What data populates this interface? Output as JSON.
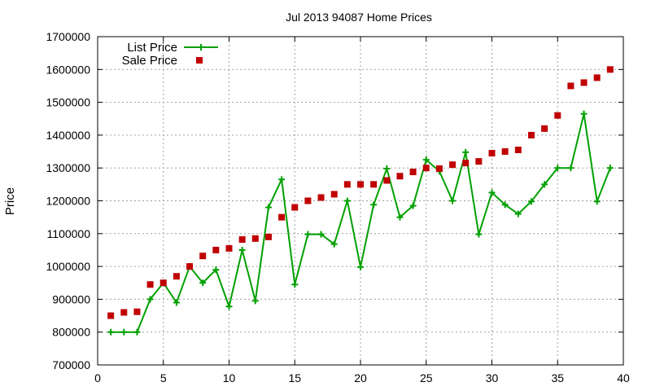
{
  "chart_data": {
    "type": "line",
    "title": "Jul 2013 94087 Home Prices",
    "xlabel": "",
    "ylabel": "Price",
    "xlim": [
      0,
      40
    ],
    "ylim": [
      700000,
      1700000
    ],
    "xticks": [
      0,
      5,
      10,
      15,
      20,
      25,
      30,
      35,
      40
    ],
    "yticks": [
      700000,
      800000,
      900000,
      1000000,
      1100000,
      1200000,
      1300000,
      1400000,
      1500000,
      1600000,
      1700000
    ],
    "grid": true,
    "legend_position": "top-left",
    "x": [
      1,
      2,
      3,
      4,
      5,
      6,
      7,
      8,
      9,
      10,
      11,
      12,
      13,
      14,
      15,
      16,
      17,
      18,
      19,
      20,
      21,
      22,
      23,
      24,
      25,
      26,
      27,
      28,
      29,
      30,
      31,
      32,
      33,
      34,
      35,
      36,
      37,
      38,
      39
    ],
    "series": [
      {
        "name": "List Price",
        "style": "linespoints",
        "color": "#00a000",
        "values": [
          800000,
          800000,
          800000,
          900000,
          950000,
          890000,
          1000000,
          950000,
          990000,
          878000,
          1050000,
          895000,
          1180000,
          1265000,
          945000,
          1098000,
          1098000,
          1068000,
          1200000,
          998000,
          1188000,
          1298000,
          1150000,
          1185000,
          1325000,
          1290000,
          1200000,
          1348000,
          1098000,
          1225000,
          1188000,
          1160000,
          1198000,
          1250000,
          1300000,
          1300000,
          1465000,
          1198000,
          1300000
        ]
      },
      {
        "name": "Sale Price",
        "style": "points",
        "color": "#c00000",
        "values": [
          850000,
          860000,
          862000,
          945000,
          950000,
          970000,
          1000000,
          1032000,
          1050000,
          1055000,
          1082000,
          1085000,
          1090000,
          1150000,
          1180000,
          1200000,
          1210000,
          1220000,
          1250000,
          1250000,
          1250000,
          1262000,
          1275000,
          1288000,
          1300000,
          1298000,
          1310000,
          1315000,
          1320000,
          1345000,
          1350000,
          1355000,
          1400000,
          1420000,
          1460000,
          1550000,
          1560000,
          1575000,
          1600000
        ]
      }
    ]
  }
}
